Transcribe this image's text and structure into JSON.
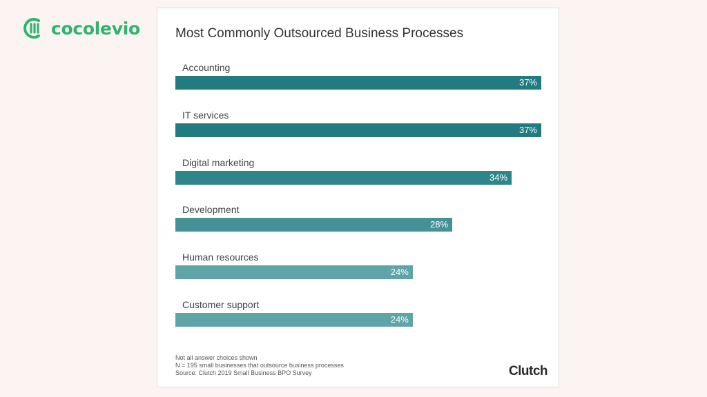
{
  "logo": {
    "text": "cocolevio",
    "icon": "cocolevio-logo-icon",
    "color": "#2fb36d"
  },
  "chart_data": {
    "type": "bar",
    "orientation": "horizontal",
    "title": "Most Commonly Outsourced Business Processes",
    "categories": [
      "Accounting",
      "IT services",
      "Digital marketing",
      "Development",
      "Human resources",
      "Customer support"
    ],
    "values": [
      37,
      37,
      34,
      28,
      24,
      24
    ],
    "value_labels": [
      "37%",
      "37%",
      "34%",
      "28%",
      "24%",
      "24%"
    ],
    "xlim": [
      0,
      37
    ],
    "grid": false,
    "legend": "none",
    "colors": [
      "#227b80",
      "#227b80",
      "#2e868a",
      "#449296",
      "#5fa4a7",
      "#5fa4a7"
    ]
  },
  "notes": [
    "Not all answer choices shown",
    "N = 195 small businesses that outsource business processes",
    "Source: Clutch 2019 Small Business BPO Survey"
  ],
  "brand": "Clutch"
}
